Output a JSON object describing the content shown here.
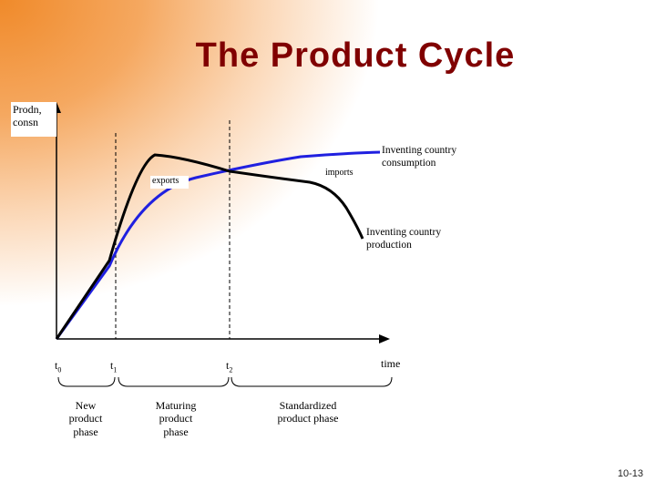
{
  "title": "The Product Cycle",
  "y_axis_label_line1": "Prodn,",
  "y_axis_label_line2": "consn",
  "x_axis_label": "time",
  "curve_labels": {
    "consumption": "Inventing country consumption",
    "production": "Inventing country production",
    "exports": "exports",
    "imports": "imports"
  },
  "time_points": {
    "t0": "t",
    "t0_sub": "0",
    "t1": "t",
    "t1_sub": "1",
    "t2": "t",
    "t2_sub": "2"
  },
  "phases": {
    "new": "New product phase",
    "maturing": "Maturing product phase",
    "standardized": "Standardized product phase"
  },
  "slide_number": "10-13",
  "colors": {
    "title": "#800000",
    "consumption_curve": "#2020e0",
    "production_curve": "#000000"
  }
}
